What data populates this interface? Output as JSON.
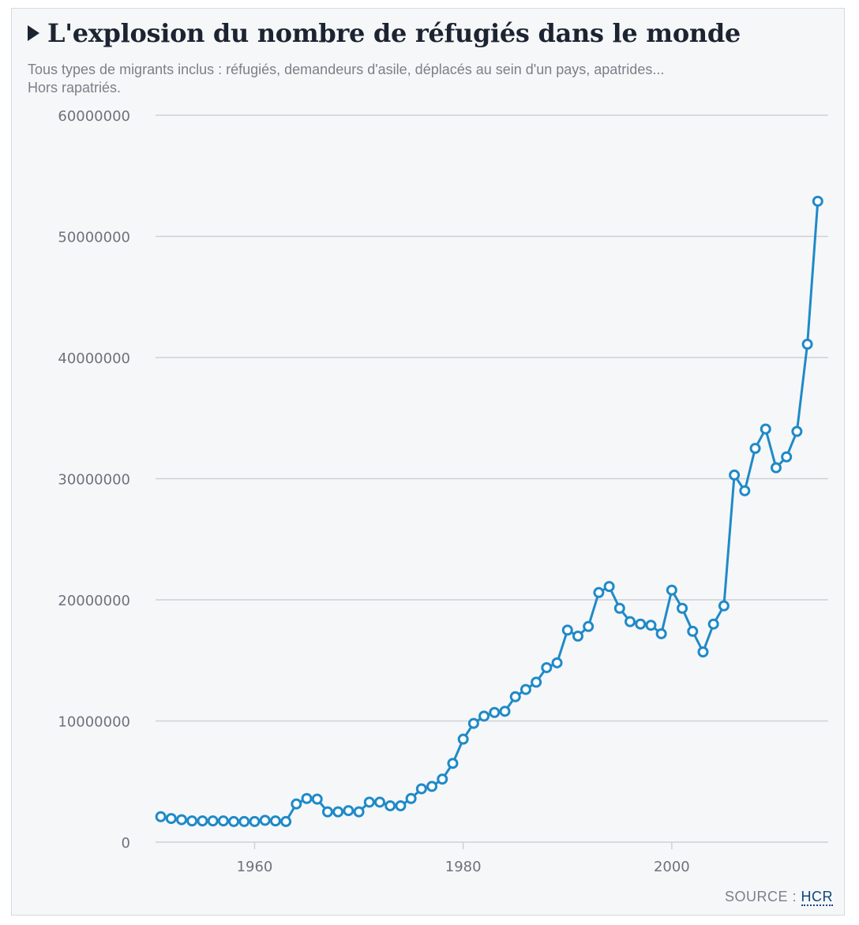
{
  "header": {
    "title": "L'explosion du nombre de réfugiés dans le monde",
    "subtitle_line1": "Tous types de migrants inclus : réfugiés, demandeurs d'asile, déplacés au sein d'un pays, apatrides...",
    "subtitle_line2": "Hors rapatriés."
  },
  "footer": {
    "source_label": "SOURCE :",
    "source_link": "HCR"
  },
  "colors": {
    "line": "#1f8ac8",
    "grid": "#cdd1d7",
    "background": "#f6f7f9"
  },
  "chart_data": {
    "type": "line",
    "title": "L'explosion du nombre de réfugiés dans le monde",
    "xlabel": "",
    "ylabel": "",
    "xlim": [
      1950.5,
      2015
    ],
    "ylim": [
      0,
      60000000
    ],
    "y_ticks": [
      0,
      10000000,
      20000000,
      30000000,
      40000000,
      50000000,
      60000000
    ],
    "y_tick_labels": [
      "0",
      "10000000",
      "20000000",
      "30000000",
      "40000000",
      "50000000",
      "60000000"
    ],
    "x_ticks": [
      1960,
      1980,
      2000
    ],
    "x_tick_labels": [
      "1960",
      "1980",
      "2000"
    ],
    "grid": "horizontal",
    "legend": "none",
    "series": [
      {
        "x": [
          1951,
          1952,
          1953,
          1954,
          1955,
          1956,
          1957,
          1958,
          1959,
          1960,
          1961,
          1962,
          1963,
          1964,
          1965,
          1966,
          1967,
          1968,
          1969,
          1970,
          1971,
          1972,
          1973,
          1974,
          1975,
          1976,
          1977,
          1978,
          1979,
          1980,
          1981,
          1982,
          1983,
          1984,
          1985,
          1986,
          1987,
          1988,
          1989,
          1990,
          1991,
          1992,
          1993,
          1994,
          1995,
          1996,
          1997,
          1998,
          1999,
          2000,
          2001,
          2002,
          2003,
          2004,
          2005,
          2006,
          2007,
          2008,
          2009,
          2010,
          2011,
          2012,
          2013,
          2014
        ],
        "values": [
          2100000,
          1950000,
          1850000,
          1750000,
          1750000,
          1750000,
          1750000,
          1700000,
          1700000,
          1700000,
          1800000,
          1750000,
          1700000,
          3150000,
          3600000,
          3550000,
          2500000,
          2500000,
          2600000,
          2500000,
          3300000,
          3300000,
          3000000,
          3000000,
          3600000,
          4400000,
          4600000,
          5200000,
          6500000,
          8500000,
          9800000,
          10400000,
          10700000,
          10800000,
          12000000,
          12600000,
          13200000,
          14400000,
          14800000,
          17500000,
          17000000,
          17800000,
          20600000,
          21100000,
          19300000,
          18200000,
          18000000,
          17900000,
          17200000,
          20800000,
          19300000,
          17400000,
          15700000,
          18000000,
          19500000,
          30300000,
          29000000,
          32500000,
          34100000,
          30900000,
          31800000,
          33900000,
          41100000,
          52900000
        ]
      }
    ]
  }
}
